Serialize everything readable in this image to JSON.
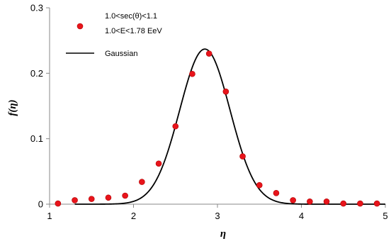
{
  "chart_data": {
    "type": "scatter",
    "xlabel": "η",
    "ylabel": "f(η)",
    "xlim": [
      1,
      5
    ],
    "ylim": [
      0,
      0.3
    ],
    "xticks": [
      "1",
      "2",
      "3",
      "4",
      "5"
    ],
    "yticks": [
      "0",
      "0.1",
      "0.2",
      "0.3"
    ],
    "grid": false,
    "legend_position": "top-left",
    "legend": {
      "points_label_line1": "1.0<sec(θ)<1.1",
      "points_label_line2": "1.0<E<1.78 EeV",
      "curve_label": "Gaussian"
    },
    "points": {
      "color": "#e8141b",
      "x": [
        1.1,
        1.3,
        1.5,
        1.7,
        1.9,
        2.1,
        2.3,
        2.5,
        2.7,
        2.9,
        3.1,
        3.3,
        3.5,
        3.7,
        3.9,
        4.1,
        4.3,
        4.5,
        4.7,
        4.9
      ],
      "y": [
        0.001,
        0.006,
        0.008,
        0.01,
        0.013,
        0.034,
        0.062,
        0.119,
        0.199,
        0.23,
        0.172,
        0.073,
        0.029,
        0.017,
        0.006,
        0.004,
        0.004,
        0.001,
        0.001,
        0.001
      ]
    },
    "curve": {
      "type": "line",
      "color": "#000000",
      "function": "gaussian",
      "amplitude": 0.237,
      "mean": 2.85,
      "sigma": 0.3
    }
  }
}
